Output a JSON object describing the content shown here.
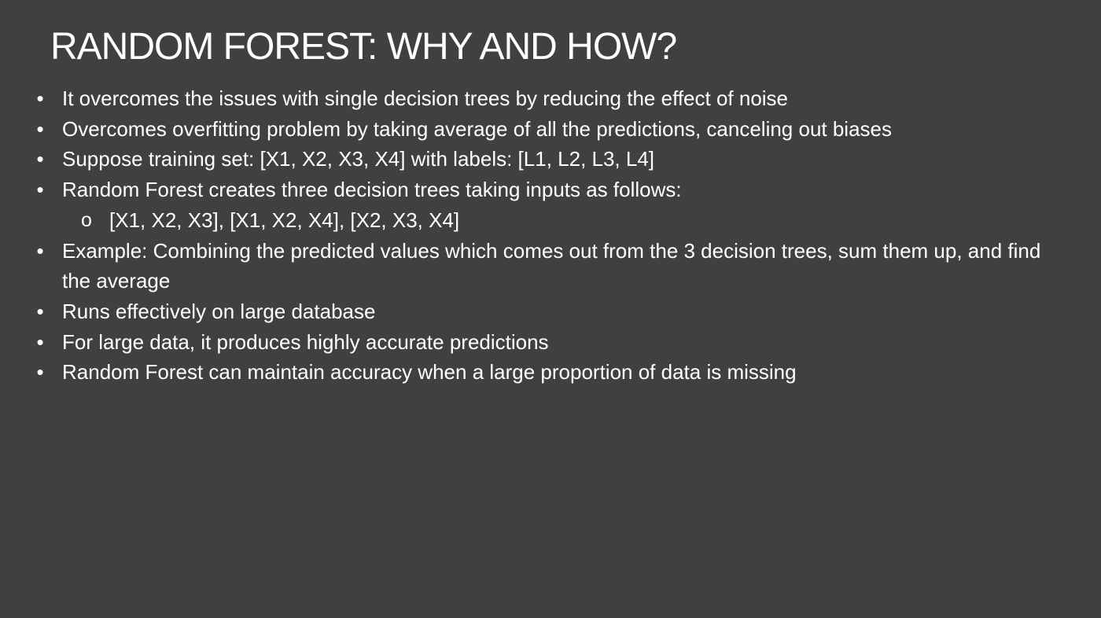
{
  "slide": {
    "title": "RANDOM FOREST: WHY AND HOW?",
    "bullet_marker": "•",
    "sub_marker": "o",
    "bullets": [
      "It overcomes the issues with single decision trees by reducing the effect of noise",
      "Overcomes overfitting problem by taking average of all the predictions, canceling out biases",
      "Suppose training set: [X1, X2, X3, X4] with labels: [L1, L2, L3, L4]",
      "Random Forest creates three decision trees taking inputs as follows:",
      "Example: Combining the predicted values which comes out from the 3 decision trees, sum them up, and find the average",
      "Runs effectively on large database",
      "For large data, it produces highly accurate predictions",
      "Random Forest can maintain accuracy when a large proportion of data is missing"
    ],
    "sub_bullets": [
      "[X1, X2, X3], [X1, X2, X4], [X2, X3, X4]"
    ]
  }
}
